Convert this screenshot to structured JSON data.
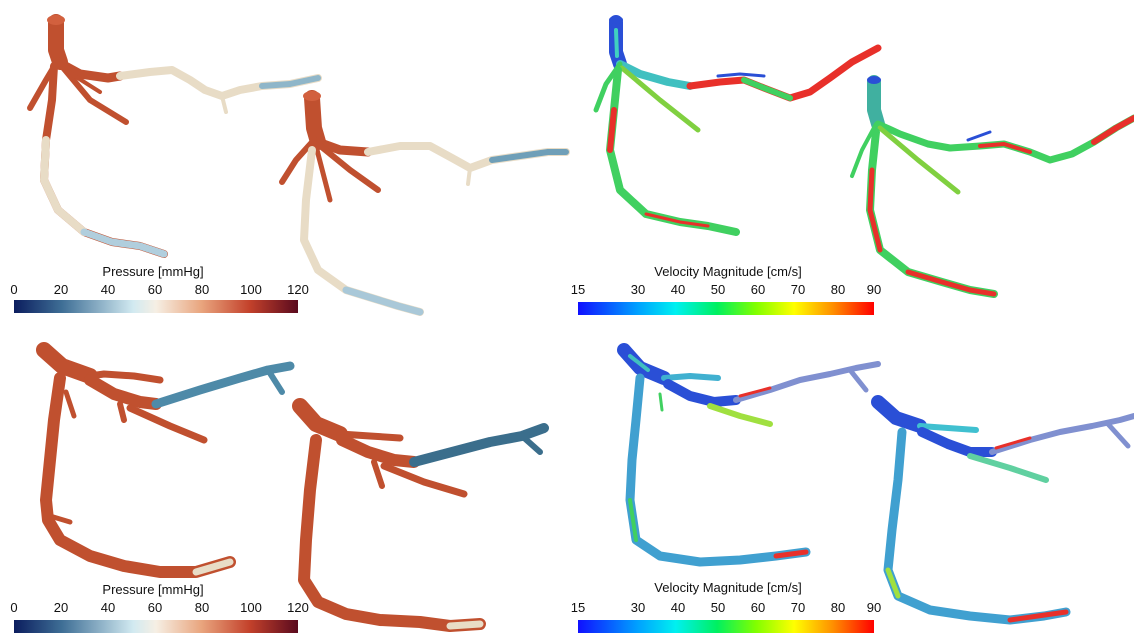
{
  "panels": [
    {
      "id": "top-left",
      "legend": {
        "title": "Pressure [mmHg]",
        "ticks": [
          "0",
          "20",
          "40",
          "60",
          "80",
          "100",
          "120"
        ],
        "range": [
          0,
          120
        ],
        "colormap": [
          "#0b1d5e",
          "#3f6f96",
          "#c7e2ec",
          "#f4ece0",
          "#e8a880",
          "#c8452d",
          "#5e0b1e"
        ]
      }
    },
    {
      "id": "top-right",
      "legend": {
        "title": "Velocity Magnitude  [cm/s]",
        "ticks": [
          "15",
          "30",
          "40",
          "50",
          "60",
          "70",
          "80",
          "90"
        ],
        "range": [
          15,
          90
        ],
        "colormap": [
          "#1a1aff",
          "#00aaff",
          "#00ffee",
          "#00ff66",
          "#aaff00",
          "#ffff00",
          "#ff9900",
          "#ff0000"
        ]
      }
    },
    {
      "id": "bottom-left",
      "legend": {
        "title": "Pressure [mmHg]",
        "ticks": [
          "0",
          "20",
          "40",
          "60",
          "80",
          "100",
          "120"
        ],
        "range": [
          0,
          120
        ],
        "colormap": [
          "#0b1d5e",
          "#3f6f96",
          "#c7e2ec",
          "#f4ece0",
          "#e8a880",
          "#c8452d",
          "#5e0b1e"
        ]
      }
    },
    {
      "id": "bottom-right",
      "legend": {
        "title": "Velocity Magnitude  [cm/s]",
        "ticks": [
          "15",
          "30",
          "40",
          "50",
          "60",
          "70",
          "80",
          "90"
        ],
        "range": [
          15,
          90
        ],
        "colormap": [
          "#1a1aff",
          "#00aaff",
          "#00ffee",
          "#00ff66",
          "#aaff00",
          "#ffff00",
          "#ff9900",
          "#ff0000"
        ]
      }
    }
  ],
  "colors": {
    "high_pressure": "#c0502f",
    "mid_pressure": "#e8dcc6",
    "low_pressure": "#4e8aa8",
    "streamline_blue": "#2a4fd6",
    "streamline_green": "#40d060",
    "streamline_red": "#e8302a"
  }
}
